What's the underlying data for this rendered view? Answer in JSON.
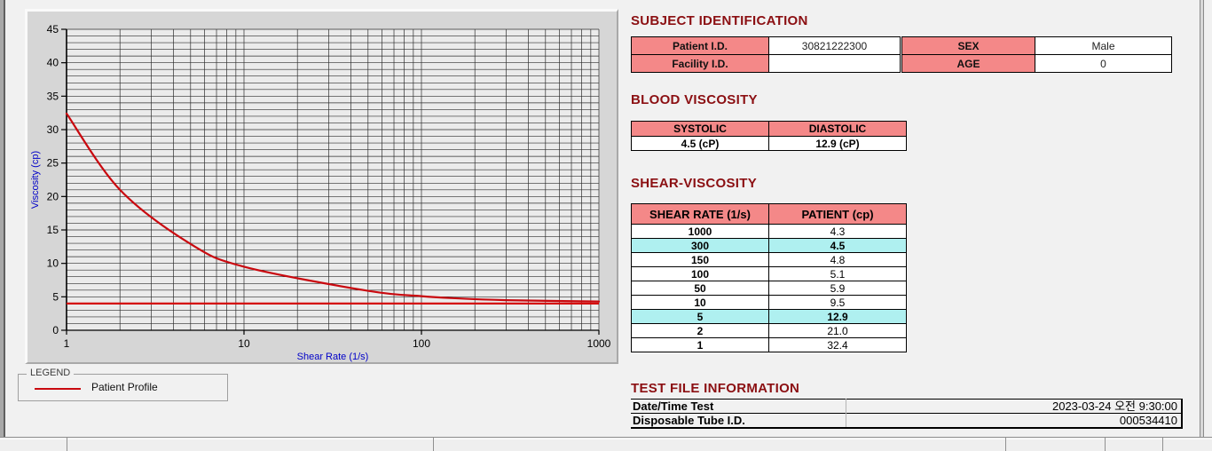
{
  "subject_identification": {
    "title": "SUBJECT IDENTIFICATION",
    "rows": [
      {
        "label1": "Patient I.D.",
        "value1": "30821222300",
        "label2": "SEX",
        "value2": "Male"
      },
      {
        "label1": "Facility I.D.",
        "value1": "",
        "label2": "AGE",
        "value2": "0"
      }
    ]
  },
  "blood_viscosity": {
    "title": "BLOOD VISCOSITY",
    "headers": [
      "SYSTOLIC",
      "DIASTOLIC"
    ],
    "values": [
      "4.5 (cP)",
      "12.9 (cP)"
    ]
  },
  "shear_viscosity": {
    "title": "SHEAR-VISCOSITY",
    "headers": [
      "SHEAR RATE (1/s)",
      "PATIENT (cp)"
    ],
    "rows": [
      {
        "rate": "1000",
        "value": "4.3",
        "highlight": false
      },
      {
        "rate": "300",
        "value": "4.5",
        "highlight": true
      },
      {
        "rate": "150",
        "value": "4.8",
        "highlight": false
      },
      {
        "rate": "100",
        "value": "5.1",
        "highlight": false
      },
      {
        "rate": "50",
        "value": "5.9",
        "highlight": false
      },
      {
        "rate": "10",
        "value": "9.5",
        "highlight": false
      },
      {
        "rate": "5",
        "value": "12.9",
        "highlight": true
      },
      {
        "rate": "2",
        "value": "21.0",
        "highlight": false
      },
      {
        "rate": "1",
        "value": "32.4",
        "highlight": false
      }
    ]
  },
  "test_file_information": {
    "title": "TEST FILE INFORMATION",
    "rows": [
      {
        "label": "Date/Time Test",
        "value": "2023-03-24   오전 9:30:00"
      },
      {
        "label": "Disposable Tube I.D.",
        "value": "000534410"
      }
    ]
  },
  "legend": {
    "box_label": "LEGEND",
    "series_label": "Patient Profile"
  },
  "chart_data": {
    "type": "line",
    "x_scale": "log",
    "x": [
      1,
      2,
      5,
      10,
      50,
      100,
      150,
      300,
      1000
    ],
    "series": [
      {
        "name": "Patient Profile",
        "values": [
          32.4,
          21.0,
          12.9,
          9.5,
          5.9,
          5.1,
          4.8,
          4.5,
          4.3
        ],
        "color": "#c9090f"
      }
    ],
    "reference_line": {
      "y": 4.0,
      "color": "#d40a0a"
    },
    "title": "",
    "xlabel": "Shear Rate (1/s)",
    "ylabel": "Viscosity (cp)",
    "xlim": [
      1,
      1000
    ],
    "ylim": [
      0,
      45
    ],
    "y_major_ticks": [
      0,
      5,
      10,
      15,
      20,
      25,
      30,
      35,
      40,
      45
    ],
    "y_minor_step": 1,
    "x_major_ticks": [
      1,
      10,
      100,
      1000
    ],
    "grid": "minor",
    "legend_position": "below-left"
  },
  "colors": {
    "section_title": "#8b0f12",
    "table_header_pink": "#f48888",
    "row_highlight_cyan": "#aff0f0",
    "curve_red": "#c9090f",
    "axis_label_blue": "#0000c8",
    "panel_gray": "#d6d6d6"
  }
}
